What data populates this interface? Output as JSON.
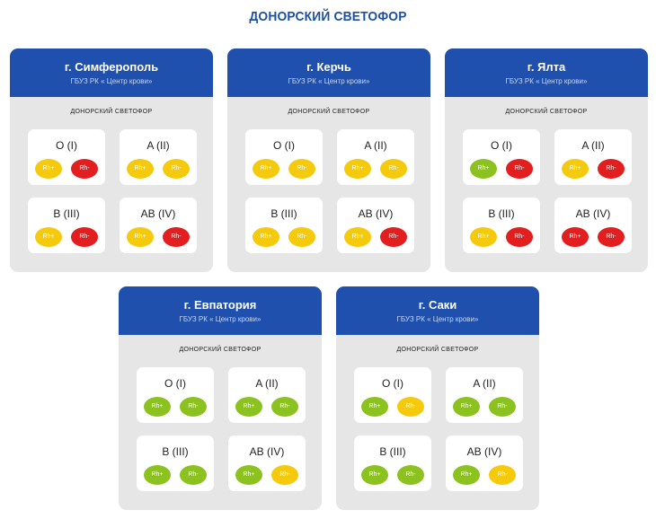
{
  "page_title": "ДОНОРСКИЙ СВЕТОФОР",
  "status_colors": {
    "green": "#8cc21f",
    "yellow": "#f5c90c",
    "red": "#e31e1e"
  },
  "cards": [
    {
      "city": "г. Симферополь",
      "org": "ГБУЗ РК « Центр крови»",
      "subtitle": "ДОНОРСКИЙ СВЕТОФОР",
      "groups": [
        {
          "name": "O (I)",
          "rh_plus": {
            "label": "Rh+",
            "status": "yellow"
          },
          "rh_minus": {
            "label": "Rh-",
            "status": "red"
          }
        },
        {
          "name": "A (II)",
          "rh_plus": {
            "label": "Rh+",
            "status": "yellow"
          },
          "rh_minus": {
            "label": "Rh-",
            "status": "yellow"
          }
        },
        {
          "name": "B (III)",
          "rh_plus": {
            "label": "Rh+",
            "status": "yellow"
          },
          "rh_minus": {
            "label": "Rh-",
            "status": "red"
          }
        },
        {
          "name": "AB (IV)",
          "rh_plus": {
            "label": "Rh+",
            "status": "yellow"
          },
          "rh_minus": {
            "label": "Rh-",
            "status": "red"
          }
        }
      ]
    },
    {
      "city": "г. Керчь",
      "org": "ГБУЗ РК « Центр крови»",
      "subtitle": "ДОНОРСКИЙ СВЕТОФОР",
      "groups": [
        {
          "name": "O (I)",
          "rh_plus": {
            "label": "Rh+",
            "status": "yellow"
          },
          "rh_minus": {
            "label": "Rh-",
            "status": "yellow"
          }
        },
        {
          "name": "A (II)",
          "rh_plus": {
            "label": "Rh+",
            "status": "yellow"
          },
          "rh_minus": {
            "label": "Rh-",
            "status": "yellow"
          }
        },
        {
          "name": "B (III)",
          "rh_plus": {
            "label": "Rh+",
            "status": "yellow"
          },
          "rh_minus": {
            "label": "Rh-",
            "status": "yellow"
          }
        },
        {
          "name": "AB (IV)",
          "rh_plus": {
            "label": "Rh+",
            "status": "yellow"
          },
          "rh_minus": {
            "label": "Rh-",
            "status": "red"
          }
        }
      ]
    },
    {
      "city": "г. Ялта",
      "org": "ГБУЗ РК « Центр крови»",
      "subtitle": "ДОНОРСКИЙ СВЕТОФОР",
      "groups": [
        {
          "name": "O (I)",
          "rh_plus": {
            "label": "Rh+",
            "status": "green"
          },
          "rh_minus": {
            "label": "Rh-",
            "status": "red"
          }
        },
        {
          "name": "A (II)",
          "rh_plus": {
            "label": "Rh+",
            "status": "yellow"
          },
          "rh_minus": {
            "label": "Rh-",
            "status": "red"
          }
        },
        {
          "name": "B (III)",
          "rh_plus": {
            "label": "Rh+",
            "status": "yellow"
          },
          "rh_minus": {
            "label": "Rh-",
            "status": "red"
          }
        },
        {
          "name": "AB (IV)",
          "rh_plus": {
            "label": "Rh+",
            "status": "red"
          },
          "rh_minus": {
            "label": "Rh-",
            "status": "red"
          }
        }
      ]
    },
    {
      "city": "г. Евпатория",
      "org": "ГБУЗ РК « Центр крови»",
      "subtitle": "ДОНОРСКИЙ СВЕТОФОР",
      "groups": [
        {
          "name": "O (I)",
          "rh_plus": {
            "label": "Rh+",
            "status": "green"
          },
          "rh_minus": {
            "label": "Rh-",
            "status": "green"
          }
        },
        {
          "name": "A (II)",
          "rh_plus": {
            "label": "Rh+",
            "status": "green"
          },
          "rh_minus": {
            "label": "Rh-",
            "status": "green"
          }
        },
        {
          "name": "B (III)",
          "rh_plus": {
            "label": "Rh+",
            "status": "green"
          },
          "rh_minus": {
            "label": "Rh-",
            "status": "green"
          }
        },
        {
          "name": "AB (IV)",
          "rh_plus": {
            "label": "Rh+",
            "status": "green"
          },
          "rh_minus": {
            "label": "Rh-",
            "status": "yellow"
          }
        }
      ]
    },
    {
      "city": "г. Саки",
      "org": "ГБУЗ РК « Центр крови»",
      "subtitle": "ДОНОРСКИЙ СВЕТОФОР",
      "groups": [
        {
          "name": "O (I)",
          "rh_plus": {
            "label": "Rh+",
            "status": "green"
          },
          "rh_minus": {
            "label": "Rh-",
            "status": "yellow"
          }
        },
        {
          "name": "A (II)",
          "rh_plus": {
            "label": "Rh+",
            "status": "green"
          },
          "rh_minus": {
            "label": "Rh-",
            "status": "green"
          }
        },
        {
          "name": "B (III)",
          "rh_plus": {
            "label": "Rh+",
            "status": "green"
          },
          "rh_minus": {
            "label": "Rh-",
            "status": "green"
          }
        },
        {
          "name": "AB (IV)",
          "rh_plus": {
            "label": "Rh+",
            "status": "green"
          },
          "rh_minus": {
            "label": "Rh-",
            "status": "yellow"
          }
        }
      ]
    }
  ]
}
